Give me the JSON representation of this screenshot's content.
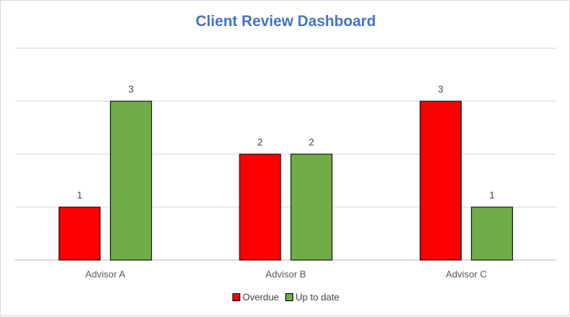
{
  "chart_data": {
    "type": "bar",
    "title": "Client Review Dashboard",
    "categories": [
      "Advisor A",
      "Advisor B",
      "Advisor C"
    ],
    "series": [
      {
        "name": "Overdue",
        "values": [
          1,
          2,
          3
        ],
        "color": "#ff0000"
      },
      {
        "name": "Up to date",
        "values": [
          3,
          2,
          1
        ],
        "color": "#70ad47"
      }
    ],
    "ylim": [
      0,
      4
    ],
    "y_ticks": [
      0,
      1,
      2,
      3,
      4
    ],
    "y_tick_labels_visible": false,
    "grid": true,
    "data_labels": true,
    "legend": "bottom"
  }
}
